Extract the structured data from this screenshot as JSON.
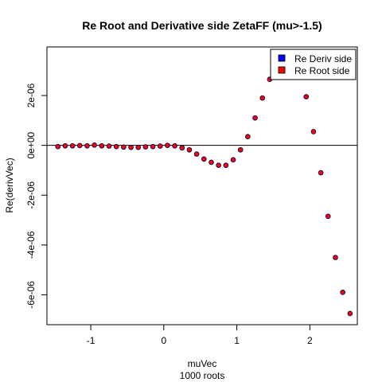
{
  "chart_data": {
    "type": "scatter",
    "title": "Re Root and Derivative side ZetaFF (mu>-1.5)",
    "xlabel": "muVec",
    "sublabel": "1000 roots",
    "ylabel": "Re(derivVec)",
    "xlim": [
      -1.6,
      2.65
    ],
    "ylim": [
      -7.2e-06,
      3.95e-06
    ],
    "xticks": [
      -1,
      0,
      1,
      2
    ],
    "xtick_labels": [
      "-1",
      "0",
      "1",
      "2"
    ],
    "yticks": [
      2e-06,
      0,
      -2e-06,
      -4e-06,
      -6e-06
    ],
    "ytick_labels": [
      "2e-06",
      "0e+00",
      "-2e-06",
      "-4e-06",
      "-6e-06"
    ],
    "hline": 0,
    "grid": false,
    "legend_position": "top-right",
    "series": [
      {
        "name": "Re Deriv side",
        "color": "#0000ff",
        "x": [
          -1.45,
          -1.35,
          -1.25,
          -1.15,
          -1.05,
          -0.95,
          -0.85,
          -0.75,
          -0.65,
          -0.55,
          -0.45,
          -0.35,
          -0.25,
          -0.15,
          -0.05,
          0.05,
          0.15,
          0.25,
          0.35,
          0.45,
          0.55,
          0.65,
          0.75,
          0.85,
          0.95,
          1.05,
          1.15,
          1.25,
          1.35,
          1.45,
          1.95,
          2.05,
          2.15,
          2.25,
          2.35,
          2.45,
          2.55
        ],
        "y": [
          -5e-08,
          -2e-08,
          -2e-08,
          -1e-08,
          -2e-08,
          1e-08,
          -2e-08,
          -3e-08,
          -5e-08,
          -7e-08,
          -8e-08,
          -8e-08,
          -6e-08,
          -5e-08,
          -3e-08,
          0.0,
          -2e-08,
          -1e-07,
          -1.8e-07,
          -3.5e-07,
          -5.5e-07,
          -6.8e-07,
          -8e-07,
          -8e-07,
          -5.8e-07,
          -1.8e-07,
          3.5e-07,
          1.1e-06,
          1.9e-06,
          2.65e-06,
          1.95e-06,
          5.5e-07,
          -1.1e-06,
          -2.85e-06,
          -4.5e-06,
          -5.9e-06,
          -6.75e-06
        ]
      },
      {
        "name": "Re Root side",
        "color": "#ff0000",
        "x": [
          -1.45,
          -1.35,
          -1.25,
          -1.15,
          -1.05,
          -0.95,
          -0.85,
          -0.75,
          -0.65,
          -0.55,
          -0.45,
          -0.35,
          -0.25,
          -0.15,
          -0.05,
          0.05,
          0.15,
          0.25,
          0.35,
          0.45,
          0.55,
          0.65,
          0.75,
          0.85,
          0.95,
          1.05,
          1.15,
          1.25,
          1.35,
          1.45,
          1.95,
          2.05,
          2.15,
          2.25,
          2.35,
          2.45,
          2.55
        ],
        "y": [
          -5e-08,
          -2e-08,
          -2e-08,
          -1e-08,
          -2e-08,
          1e-08,
          -2e-08,
          -3e-08,
          -5e-08,
          -7e-08,
          -8e-08,
          -8e-08,
          -6e-08,
          -5e-08,
          -3e-08,
          0.0,
          -2e-08,
          -1e-07,
          -1.8e-07,
          -3.5e-07,
          -5.5e-07,
          -6.8e-07,
          -8e-07,
          -8e-07,
          -5.8e-07,
          -1.8e-07,
          3.5e-07,
          1.1e-06,
          1.9e-06,
          2.65e-06,
          1.95e-06,
          5.5e-07,
          -1.1e-06,
          -2.85e-06,
          -4.5e-06,
          -5.9e-06,
          -6.75e-06
        ]
      }
    ]
  }
}
